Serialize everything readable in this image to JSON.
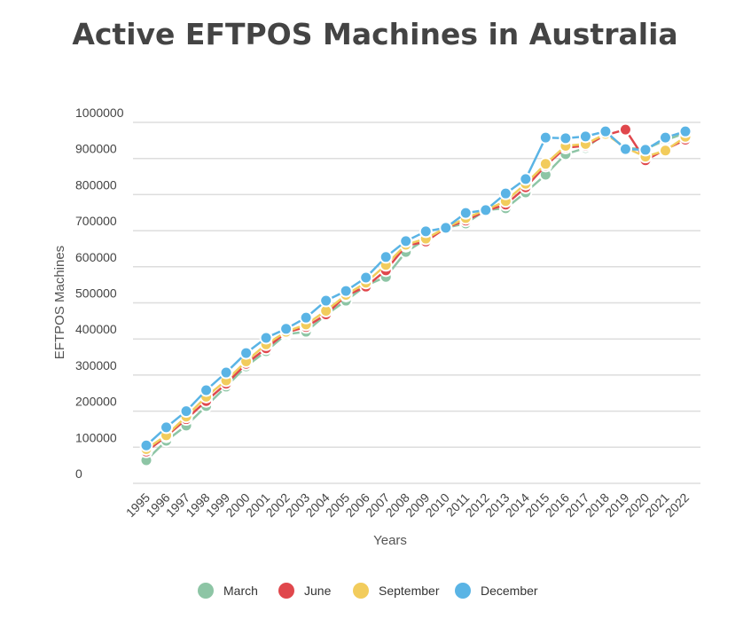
{
  "chart_data": {
    "type": "line",
    "title": "Active EFTPOS Machines in Australia",
    "xlabel": "Years",
    "ylabel": "EFTPOS Machines",
    "ylim": [
      0,
      1000000
    ],
    "yticks": [
      "0",
      "100000",
      "200000",
      "300000",
      "400000",
      "500000",
      "600000",
      "700000",
      "800000",
      "900000",
      "1000000"
    ],
    "grid": true,
    "legend": "bottom",
    "x": [
      "1995",
      "1996",
      "1997",
      "1998",
      "1999",
      "2000",
      "2001",
      "2002",
      "2003",
      "2004",
      "2005",
      "2006",
      "2007",
      "2008",
      "2009",
      "2010",
      "2011",
      "2012",
      "2013",
      "2014",
      "2015",
      "2016",
      "2017",
      "2018",
      "2019",
      "2020",
      "2021",
      "2022"
    ],
    "series": [
      {
        "name": "March",
        "color": "#8dc5a5",
        "values": [
          64000,
          118000,
          160000,
          214000,
          268000,
          324000,
          366000,
          413000,
          420000,
          467000,
          506000,
          548000,
          572000,
          641000,
          676000,
          708000,
          720000,
          757000,
          762000,
          806000,
          855000,
          912000,
          929000,
          970000,
          929000,
          926000,
          951000,
          970000
        ]
      },
      {
        "name": "June",
        "color": "#e0474c",
        "values": [
          88000,
          130000,
          178000,
          228000,
          276000,
          331000,
          374000,
          418000,
          433000,
          468000,
          520000,
          545000,
          590000,
          658000,
          670000,
          708000,
          728000,
          755000,
          772000,
          820000,
          880000,
          930000,
          935000,
          965000,
          980000,
          895000,
          925000,
          952000
        ]
      },
      {
        "name": "September",
        "color": "#f2cc5c",
        "values": [
          95000,
          133000,
          185000,
          240000,
          285000,
          338000,
          385000,
          420000,
          440000,
          478000,
          522000,
          556000,
          605000,
          661000,
          678000,
          708000,
          735000,
          757000,
          782000,
          830000,
          885000,
          935000,
          940000,
          968000,
          930000,
          905000,
          922000,
          960000
        ]
      },
      {
        "name": "December",
        "color": "#5ab4e5",
        "values": [
          105000,
          155000,
          200000,
          258000,
          307000,
          361000,
          403000,
          428000,
          459000,
          506000,
          533000,
          570000,
          627000,
          671000,
          698000,
          708000,
          749000,
          757000,
          803000,
          843000,
          958000,
          956000,
          961000,
          975000,
          926000,
          924000,
          958000,
          975000
        ]
      }
    ]
  }
}
